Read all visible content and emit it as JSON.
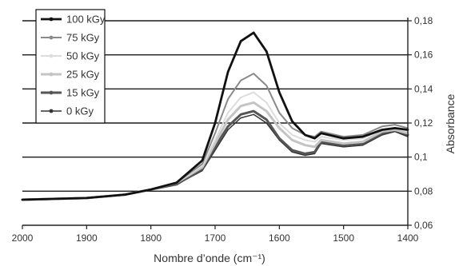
{
  "chart_data": {
    "type": "line",
    "xlabel": "Nombre d’onde (cm⁻¹)",
    "ylabel": "Absorbance",
    "xlim": [
      2000,
      1400
    ],
    "ylim": [
      0.06,
      0.18
    ],
    "x_reversed": true,
    "y_axis_side": "right",
    "grid": "horizontal",
    "legend_position": "top-left",
    "x_ticks": [
      2000,
      1900,
      1800,
      1700,
      1600,
      1500,
      1400
    ],
    "x_tick_labels": [
      "2000",
      "1900",
      "1800",
      "1700",
      "1600",
      "1500",
      "1400"
    ],
    "y_ticks": [
      0.06,
      0.08,
      0.1,
      0.12,
      0.14,
      0.16,
      0.18
    ],
    "y_tick_labels": [
      "0,06",
      "0,08",
      "0,1",
      "0,12",
      "0,14",
      "0,16",
      "0,18"
    ],
    "x": [
      2000,
      1900,
      1840,
      1800,
      1760,
      1720,
      1700,
      1680,
      1660,
      1640,
      1620,
      1600,
      1580,
      1560,
      1545,
      1535,
      1500,
      1470,
      1440,
      1420,
      1400
    ],
    "series": [
      {
        "name": "100 kGy",
        "color": "#111111",
        "width": 2.8,
        "values": [
          0.075,
          0.076,
          0.078,
          0.081,
          0.085,
          0.098,
          0.12,
          0.15,
          0.168,
          0.173,
          0.162,
          0.138,
          0.121,
          0.113,
          0.111,
          0.114,
          0.111,
          0.112,
          0.116,
          0.117,
          0.116
        ]
      },
      {
        "name": "75 kGy",
        "color": "#8a8a8a",
        "width": 2.0,
        "values": [
          0.075,
          0.076,
          0.078,
          0.081,
          0.085,
          0.096,
          0.114,
          0.134,
          0.145,
          0.149,
          0.142,
          0.126,
          0.117,
          0.113,
          0.112,
          0.115,
          0.112,
          0.113,
          0.118,
          0.119,
          0.117
        ]
      },
      {
        "name": "50 kGy",
        "color": "#dcdcdc",
        "width": 2.0,
        "values": [
          0.075,
          0.076,
          0.078,
          0.081,
          0.085,
          0.095,
          0.11,
          0.126,
          0.135,
          0.138,
          0.132,
          0.12,
          0.113,
          0.11,
          0.109,
          0.112,
          0.11,
          0.111,
          0.116,
          0.117,
          0.115
        ]
      },
      {
        "name": "25 kGy",
        "color": "#c4c4c4",
        "width": 3.0,
        "values": [
          0.075,
          0.076,
          0.078,
          0.081,
          0.085,
          0.094,
          0.108,
          0.122,
          0.13,
          0.132,
          0.127,
          0.117,
          0.11,
          0.107,
          0.106,
          0.11,
          0.108,
          0.109,
          0.115,
          0.116,
          0.114
        ]
      },
      {
        "name": "15 kGy",
        "color": "#555555",
        "width": 3.0,
        "values": [
          0.075,
          0.076,
          0.078,
          0.081,
          0.084,
          0.093,
          0.106,
          0.118,
          0.125,
          0.127,
          0.122,
          0.111,
          0.104,
          0.102,
          0.103,
          0.109,
          0.107,
          0.108,
          0.114,
          0.116,
          0.113
        ]
      },
      {
        "name": "0 kGy",
        "color": "#333333",
        "width": 1.5,
        "values": [
          0.075,
          0.076,
          0.078,
          0.081,
          0.084,
          0.092,
          0.104,
          0.116,
          0.123,
          0.125,
          0.12,
          0.11,
          0.103,
          0.101,
          0.102,
          0.108,
          0.106,
          0.107,
          0.113,
          0.115,
          0.112
        ]
      }
    ]
  }
}
